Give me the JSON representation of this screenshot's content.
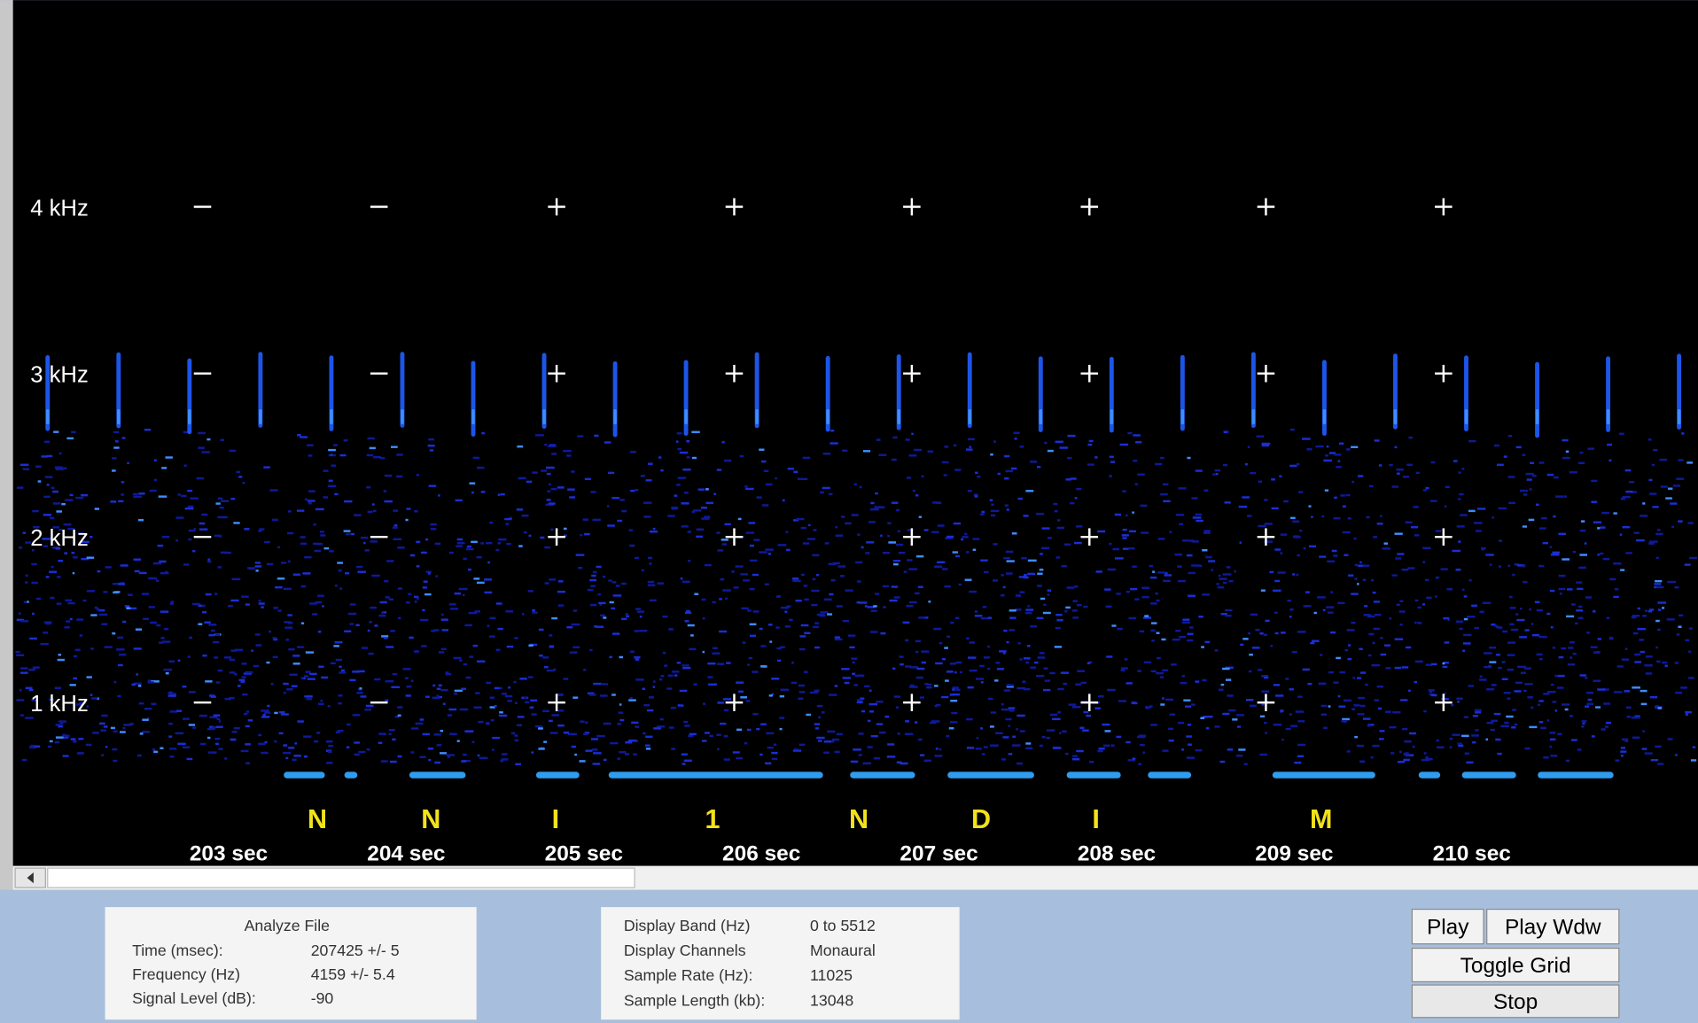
{
  "y_axis_labels": [
    "4 kHz",
    "3 kHz",
    "2 kHz",
    "1 kHz"
  ],
  "time_labels": [
    "203 sec",
    "204 sec",
    "205 sec",
    "206 sec",
    "207 sec",
    "208 sec",
    "209 sec",
    "210 sec"
  ],
  "decoded_letters": [
    "N",
    "N",
    "I",
    "1",
    "N",
    "D",
    "I",
    "M"
  ],
  "analyze_panel": {
    "title": "Analyze File",
    "rows": [
      [
        "Time (msec):",
        "207425 +/- 5"
      ],
      [
        "Frequency (Hz)",
        "4159 +/- 5.4"
      ],
      [
        "Signal Level (dB):",
        "-90"
      ]
    ]
  },
  "display_panel": {
    "rows": [
      [
        "Display Band (Hz)",
        "0 to 5512"
      ],
      [
        "Display Channels",
        "Monaural"
      ],
      [
        "Sample Rate (Hz):",
        "11025"
      ],
      [
        "Sample Length (kb):",
        "13048"
      ]
    ]
  },
  "buttons": [
    "Play",
    "Play Wdw",
    "Toggle Grid",
    "Stop"
  ]
}
